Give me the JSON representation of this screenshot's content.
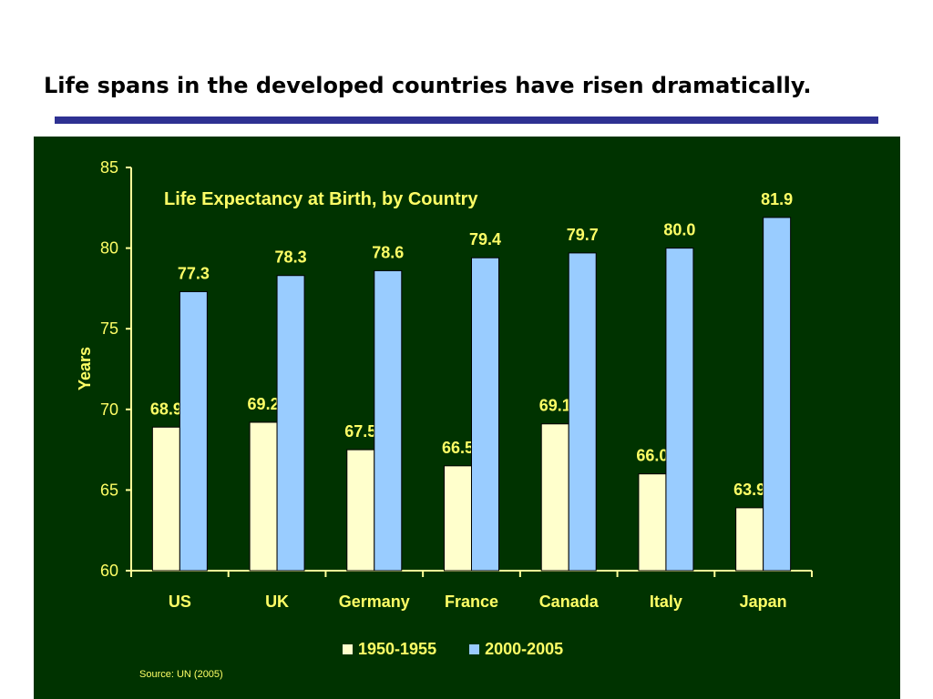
{
  "slide": {
    "title": "Life spans in the developed countries have risen dramatically."
  },
  "colors": {
    "panel": "#003300",
    "text": "#ffff66",
    "axis": "#ffff99",
    "rule": "#2e3192"
  },
  "source": "Source: UN (2005)",
  "chart_data": {
    "type": "bar",
    "title": "Life Expectancy at Birth, by Country",
    "xlabel": "",
    "ylabel": "Years",
    "ylim": [
      60,
      85
    ],
    "yticks": [
      60,
      65,
      70,
      75,
      80,
      85
    ],
    "categories": [
      "US",
      "UK",
      "Germany",
      "France",
      "Canada",
      "Italy",
      "Japan"
    ],
    "series": [
      {
        "name": "1950-1955",
        "color": "#ffffcc",
        "values": [
          68.9,
          69.2,
          67.5,
          66.5,
          69.1,
          66.0,
          63.9
        ],
        "labels": [
          "68.9",
          "69.2",
          "67.5",
          "66.5",
          "69.1",
          "66.0",
          "63.9"
        ]
      },
      {
        "name": "2000-2005",
        "color": "#99ccff",
        "values": [
          77.3,
          78.3,
          78.6,
          79.4,
          79.7,
          80.0,
          81.9
        ],
        "labels": [
          "77.3",
          "78.3",
          "78.6",
          "79.4",
          "79.7",
          "80.0",
          "81.9"
        ]
      }
    ],
    "grid": false,
    "legend_position": "bottom"
  }
}
